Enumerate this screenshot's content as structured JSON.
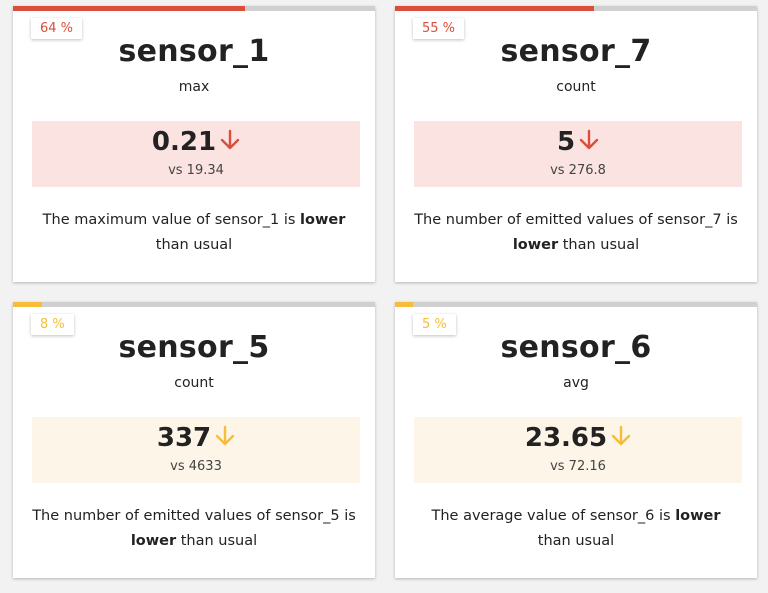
{
  "colors": {
    "red": "#d94f3b",
    "red_bg": "#fbe3e1",
    "yellow": "#f7bd3a",
    "yellow_bg": "#fdf5e7"
  },
  "cards": [
    {
      "percent": 64,
      "percent_label": "64 %",
      "sensor": "sensor_1",
      "aggregation": "max",
      "value": "0.21",
      "arrow_icon": "arrow-down-icon",
      "vs": "vs 19.34",
      "desc_before": "The maximum value of sensor_1 is ",
      "desc_bold": "lower",
      "desc_after": " than usual",
      "severity": "red"
    },
    {
      "percent": 55,
      "percent_label": "55 %",
      "sensor": "sensor_7",
      "aggregation": "count",
      "value": "5",
      "arrow_icon": "arrow-down-icon",
      "vs": "vs 276.8",
      "desc_before": "The number of emitted values of sensor_7 is ",
      "desc_bold": "lower",
      "desc_after": " than usual",
      "severity": "red"
    },
    {
      "percent": 8,
      "percent_label": "8 %",
      "sensor": "sensor_5",
      "aggregation": "count",
      "value": "337",
      "arrow_icon": "arrow-down-icon",
      "vs": "vs 4633",
      "desc_before": "The number of emitted values of sensor_5 is ",
      "desc_bold": "lower",
      "desc_after": " than usual",
      "severity": "yellow"
    },
    {
      "percent": 5,
      "percent_label": "5 %",
      "sensor": "sensor_6",
      "aggregation": "avg",
      "value": "23.65",
      "arrow_icon": "arrow-down-icon",
      "vs": "vs 72.16",
      "desc_before": "The average value of sensor_6 is ",
      "desc_bold": "lower",
      "desc_after": " than usual",
      "severity": "yellow"
    }
  ]
}
